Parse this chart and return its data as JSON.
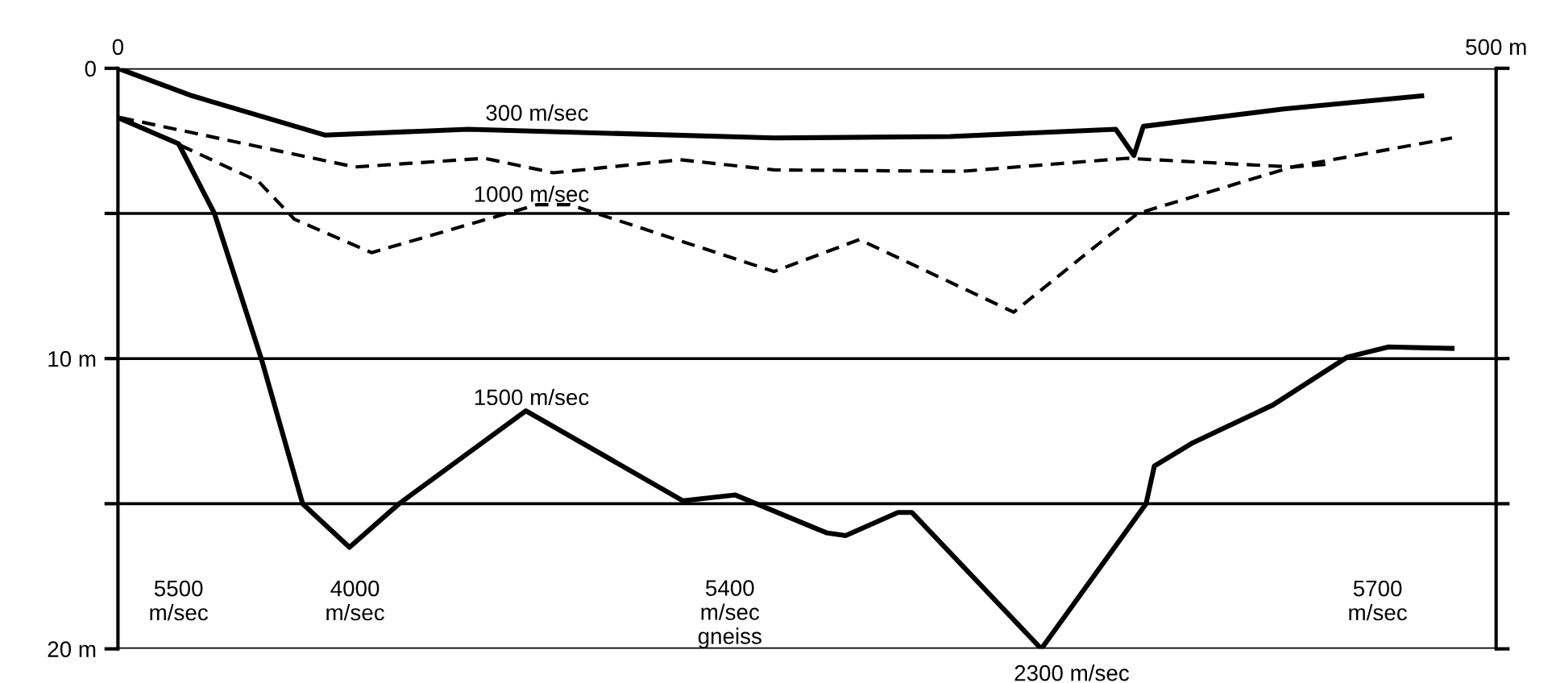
{
  "chart_data": {
    "type": "line",
    "xlim": [
      0,
      500
    ],
    "ylim": [
      20,
      0
    ],
    "xticks": [
      0,
      {
        "value": 500,
        "label": "500 m"
      }
    ],
    "yticks": [
      0,
      {
        "value": 5,
        "label": null
      },
      {
        "value": 10,
        "label": "10 m"
      },
      {
        "value": 15,
        "label": null
      },
      {
        "value": 20,
        "label": "20 m"
      }
    ],
    "grid": "y",
    "legend": false,
    "series": [
      {
        "color": "#000000",
        "line_style": "solid",
        "x": [
          0,
          27,
          75,
          127,
          238,
          302,
          362,
          368.6,
          372,
          423,
          473
        ],
        "values": [
          0,
          0.95,
          2.3,
          2.1,
          2.4,
          2.35,
          2.1,
          3.0,
          2.0,
          1.4,
          0.95
        ]
      },
      {
        "color": "#000000",
        "line_style": "dashed",
        "x": [
          1,
          86,
          133,
          158,
          204,
          238,
          306,
          366,
          426,
          484
        ],
        "values": [
          1.7,
          3.4,
          3.1,
          3.6,
          3.15,
          3.5,
          3.55,
          3.1,
          3.4,
          2.4
        ]
      },
      {
        "color": "#000000",
        "line_style": "dashed",
        "x": [
          1,
          51,
          64,
          92,
          152,
          164,
          238,
          269,
          325,
          359,
          370,
          426,
          440
        ],
        "values": [
          1.7,
          3.9,
          5.2,
          6.35,
          4.7,
          4.7,
          7.0,
          5.9,
          8.4,
          5.8,
          5.0,
          3.4,
          3.3
        ]
      },
      {
        "color": "#000000",
        "line_style": "solid",
        "x": [
          0,
          22,
          35,
          52,
          67,
          84,
          102,
          148,
          205,
          224,
          257,
          264,
          283,
          288,
          335,
          373,
          376,
          390,
          419,
          446,
          461,
          484
        ],
        "values": [
          1.7,
          2.6,
          5.0,
          10.0,
          15.0,
          16.5,
          15.0,
          11.8,
          14.9,
          14.7,
          16.0,
          16.1,
          15.3,
          15.3,
          20.0,
          15.0,
          13.7,
          12.9,
          11.6,
          9.95,
          9.6,
          9.65
        ]
      }
    ],
    "annotations": [
      "300 m/sec",
      "1000 m/sec",
      "1500 m/sec",
      "5500\nm/sec",
      "4000\nm/sec",
      "5400\nm/sec\ngneiss",
      "2300 m/sec",
      "5700\nm/sec"
    ]
  }
}
